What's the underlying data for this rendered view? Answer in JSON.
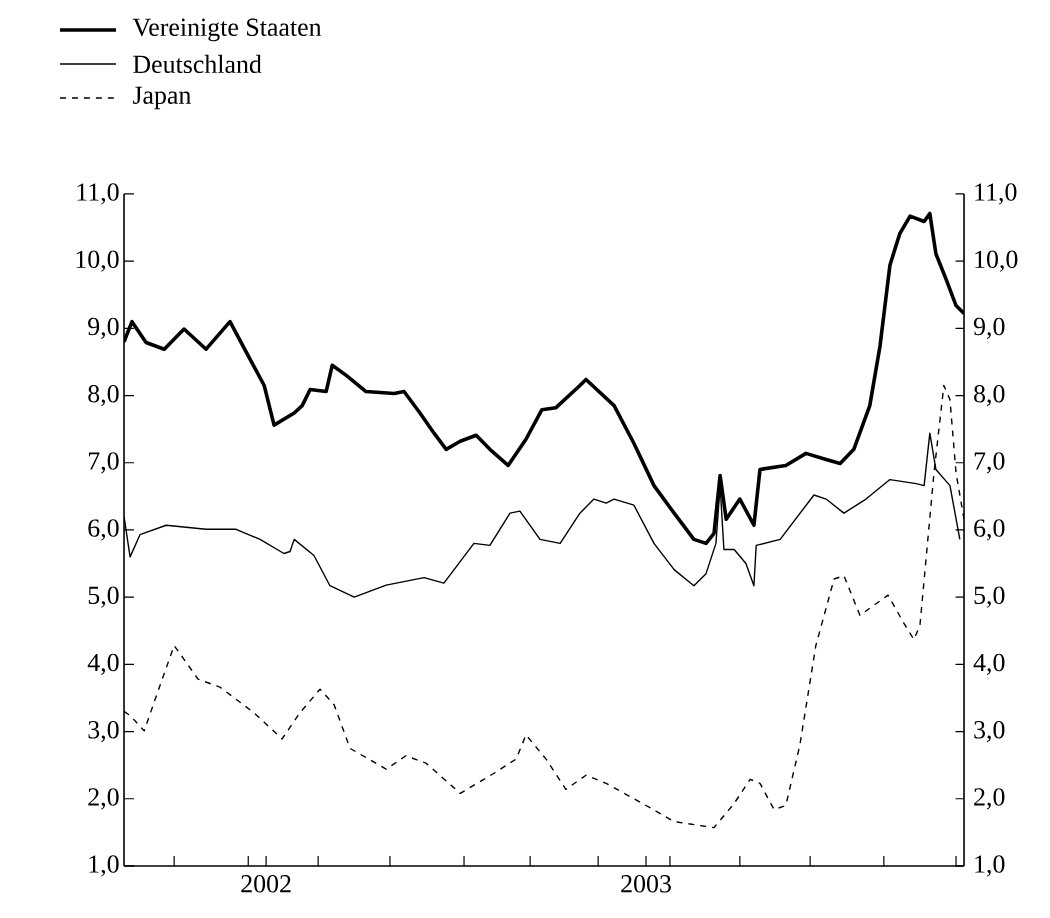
{
  "chart_data": {
    "type": "line",
    "legend": "top left",
    "grid": false,
    "marker": "none",
    "xlim": [
      2001.626,
      2003.837
    ],
    "xticks": [
      {
        "value": 2001.758,
        "label": null
      },
      {
        "value": 2001.953,
        "label": null
      },
      2002,
      {
        "value": 2002.137,
        "label": null
      },
      {
        "value": 2002.326,
        "label": null
      },
      {
        "value": 2002.521,
        "label": null
      },
      {
        "value": 2002.695,
        "label": null
      },
      {
        "value": 2002.874,
        "label": null
      },
      2003,
      {
        "value": 2003.063,
        "label": null
      },
      {
        "value": 2003.247,
        "label": null
      },
      {
        "value": 2003.432,
        "label": null
      },
      {
        "value": 2003.626,
        "label": null
      },
      {
        "value": 2003.816,
        "label": null
      }
    ],
    "ylim": [
      1,
      11
    ],
    "yticks": [
      {
        "value": 1,
        "label": "1,0"
      },
      {
        "value": 2,
        "label": "2,0"
      },
      {
        "value": 3,
        "label": "3,0"
      },
      {
        "value": 4,
        "label": "4,0"
      },
      {
        "value": 5,
        "label": "5,0"
      },
      {
        "value": 6,
        "label": "6,0"
      },
      {
        "value": 7,
        "label": "7,0"
      },
      {
        "value": 8,
        "label": "8,0"
      },
      {
        "value": 9,
        "label": "9,0"
      },
      {
        "value": 10,
        "label": "10,0"
      },
      {
        "value": 11,
        "label": "11,0"
      }
    ],
    "y2lim": [
      1,
      11
    ],
    "y2ticks": [
      {
        "value": 1,
        "label": "1,0"
      },
      {
        "value": 2,
        "label": "2,0"
      },
      {
        "value": 3,
        "label": "3,0"
      },
      {
        "value": 4,
        "label": "4,0"
      },
      {
        "value": 5,
        "label": "5,0"
      },
      {
        "value": 6,
        "label": "6,0"
      },
      {
        "value": 7,
        "label": "7,0"
      },
      {
        "value": 8,
        "label": "8,0"
      },
      {
        "value": 9,
        "label": "9,0"
      },
      {
        "value": 10,
        "label": "10,0"
      },
      {
        "value": 11,
        "label": "11,0"
      }
    ],
    "series": [
      {
        "name": "Vereinigte Staaten",
        "color": "#000000",
        "line_style": "solid",
        "x": [
          2001.626,
          2001.647,
          2001.684,
          2001.732,
          2001.784,
          2001.842,
          2001.905,
          2001.958,
          2001.995,
          2002.021,
          2002.074,
          2002.095,
          2002.116,
          2002.158,
          2002.174,
          2002.211,
          2002.263,
          2002.337,
          2002.363,
          2002.405,
          2002.442,
          2002.474,
          2002.511,
          2002.553,
          2002.589,
          2002.637,
          2002.684,
          2002.726,
          2002.763,
          2002.826,
          2002.842,
          2002.916,
          2002.968,
          2003.021,
          2003.074,
          2003.126,
          2003.158,
          2003.179,
          2003.195,
          2003.211,
          2003.247,
          2003.284,
          2003.3,
          2003.368,
          2003.421,
          2003.474,
          2003.511,
          2003.547,
          2003.589,
          2003.616,
          2003.642,
          2003.668,
          2003.695,
          2003.732,
          2003.747,
          2003.763,
          2003.79,
          2003.816,
          2003.837
        ],
        "values": [
          8.8,
          9.1,
          8.79,
          8.69,
          8.99,
          8.69,
          9.1,
          8.54,
          8.15,
          7.56,
          7.74,
          7.85,
          8.09,
          8.06,
          8.45,
          8.3,
          8.06,
          8.03,
          8.06,
          7.74,
          7.44,
          7.2,
          7.32,
          7.41,
          7.2,
          6.96,
          7.35,
          7.79,
          7.82,
          8.15,
          8.24,
          7.85,
          7.29,
          6.66,
          6.25,
          5.86,
          5.8,
          5.95,
          6.81,
          6.16,
          6.46,
          6.07,
          6.9,
          6.96,
          7.14,
          7.05,
          6.99,
          7.2,
          7.85,
          8.74,
          9.94,
          10.41,
          10.67,
          10.59,
          10.71,
          10.11,
          9.73,
          9.34,
          9.22
        ]
      },
      {
        "name": "Deutschland",
        "color": "#000000",
        "line_style": "solid",
        "x": [
          2001.626,
          2001.642,
          2001.668,
          2001.737,
          2001.842,
          2001.921,
          2001.984,
          2002.047,
          2002.063,
          2002.074,
          2002.126,
          2002.168,
          2002.232,
          2002.316,
          2002.416,
          2002.468,
          2002.547,
          2002.589,
          2002.642,
          2002.668,
          2002.721,
          2002.774,
          2002.826,
          2002.863,
          2002.895,
          2002.916,
          2002.968,
          2003.021,
          2003.074,
          2003.126,
          2003.158,
          2003.184,
          2003.195,
          2003.205,
          2003.232,
          2003.263,
          2003.284,
          2003.29,
          2003.353,
          2003.442,
          2003.474,
          2003.521,
          2003.579,
          2003.642,
          2003.711,
          2003.732,
          2003.747,
          2003.763,
          2003.8,
          2003.826
        ],
        "values": [
          6.2,
          5.6,
          5.93,
          6.07,
          6.01,
          6.01,
          5.86,
          5.65,
          5.68,
          5.86,
          5.62,
          5.17,
          5.0,
          5.18,
          5.29,
          5.21,
          5.8,
          5.77,
          6.25,
          6.28,
          5.86,
          5.8,
          6.25,
          6.46,
          6.4,
          6.46,
          6.37,
          5.8,
          5.41,
          5.17,
          5.35,
          5.8,
          6.66,
          5.71,
          5.71,
          5.5,
          5.17,
          5.77,
          5.86,
          6.52,
          6.46,
          6.25,
          6.46,
          6.75,
          6.69,
          6.66,
          7.44,
          6.9,
          6.66,
          5.86
        ]
      },
      {
        "name": "Japan",
        "color": "#000000",
        "line_style": "dashed",
        "x": [
          2001.626,
          2001.642,
          2001.679,
          2001.721,
          2001.758,
          2001.821,
          2001.879,
          2001.968,
          2002.042,
          2002.089,
          2002.142,
          2002.179,
          2002.221,
          2002.316,
          2002.368,
          2002.421,
          2002.511,
          2002.6,
          2002.658,
          2002.684,
          2002.737,
          2002.789,
          2002.842,
          2002.895,
          2003.0,
          2003.074,
          2003.179,
          2003.232,
          2003.274,
          2003.3,
          2003.337,
          2003.368,
          2003.405,
          2003.447,
          2003.495,
          2003.521,
          2003.563,
          2003.6,
          2003.637,
          2003.679,
          2003.705,
          2003.721,
          2003.758,
          2003.784,
          2003.8,
          2003.816,
          2003.837
        ],
        "values": [
          3.3,
          3.24,
          3.01,
          3.69,
          4.28,
          3.78,
          3.66,
          3.28,
          2.89,
          3.28,
          3.63,
          3.4,
          2.75,
          2.44,
          2.64,
          2.53,
          2.08,
          2.38,
          2.59,
          2.95,
          2.59,
          2.14,
          2.35,
          2.23,
          1.9,
          1.66,
          1.57,
          1.93,
          2.29,
          2.23,
          1.84,
          1.9,
          2.8,
          4.28,
          5.27,
          5.32,
          4.73,
          4.88,
          5.03,
          4.61,
          4.37,
          4.58,
          6.85,
          8.15,
          7.94,
          6.85,
          6.16
        ]
      }
    ]
  }
}
